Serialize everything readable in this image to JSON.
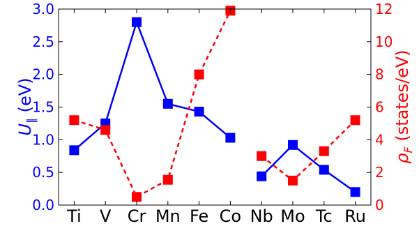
{
  "chart_data": {
    "type": "line",
    "categories": [
      "Ti",
      "V",
      "Cr",
      "Mn",
      "Fe",
      "Co",
      "Nb",
      "Mo",
      "Tc",
      "Ru"
    ],
    "left_axis": {
      "label": "U_∥ (eV)",
      "label_main": "U",
      "label_sub": "∥",
      "label_unit": " (eV)",
      "ylim": [
        0.0,
        3.0
      ],
      "ticks": [
        "0.0",
        "0.5",
        "1.0",
        "1.5",
        "2.0",
        "2.5",
        "3.0"
      ],
      "color": "#0000ff"
    },
    "right_axis": {
      "label": "ρ_F (states/eV)",
      "label_main": "ρ",
      "label_sub": "F",
      "label_unit": " (states/eV)",
      "ylim": [
        0,
        12
      ],
      "ticks": [
        "0",
        "2",
        "4",
        "6",
        "8",
        "10",
        "12"
      ],
      "color": "#ff0000"
    },
    "series": [
      {
        "axis": "left",
        "color": "#0000ff",
        "line_style": "solid",
        "marker": "square",
        "segments": [
          {
            "categories": [
              "Ti",
              "V",
              "Cr",
              "Mn",
              "Fe",
              "Co"
            ],
            "values": [
              0.84,
              1.25,
              2.8,
              1.55,
              1.43,
              1.03
            ]
          },
          {
            "categories": [
              "Nb",
              "Mo",
              "Tc",
              "Ru"
            ],
            "values": [
              0.44,
              0.92,
              0.54,
              0.2
            ]
          }
        ]
      },
      {
        "axis": "right",
        "color": "#ff0000",
        "line_style": "dashed",
        "marker": "square",
        "segments": [
          {
            "categories": [
              "Ti",
              "V",
              "Cr",
              "Mn",
              "Fe",
              "Co"
            ],
            "values": [
              5.2,
              4.6,
              0.5,
              1.55,
              8.0,
              11.9
            ]
          },
          {
            "categories": [
              "Nb",
              "Mo",
              "Tc",
              "Ru"
            ],
            "values": [
              3.0,
              1.5,
              3.3,
              5.2
            ]
          }
        ]
      }
    ],
    "grid": false
  }
}
